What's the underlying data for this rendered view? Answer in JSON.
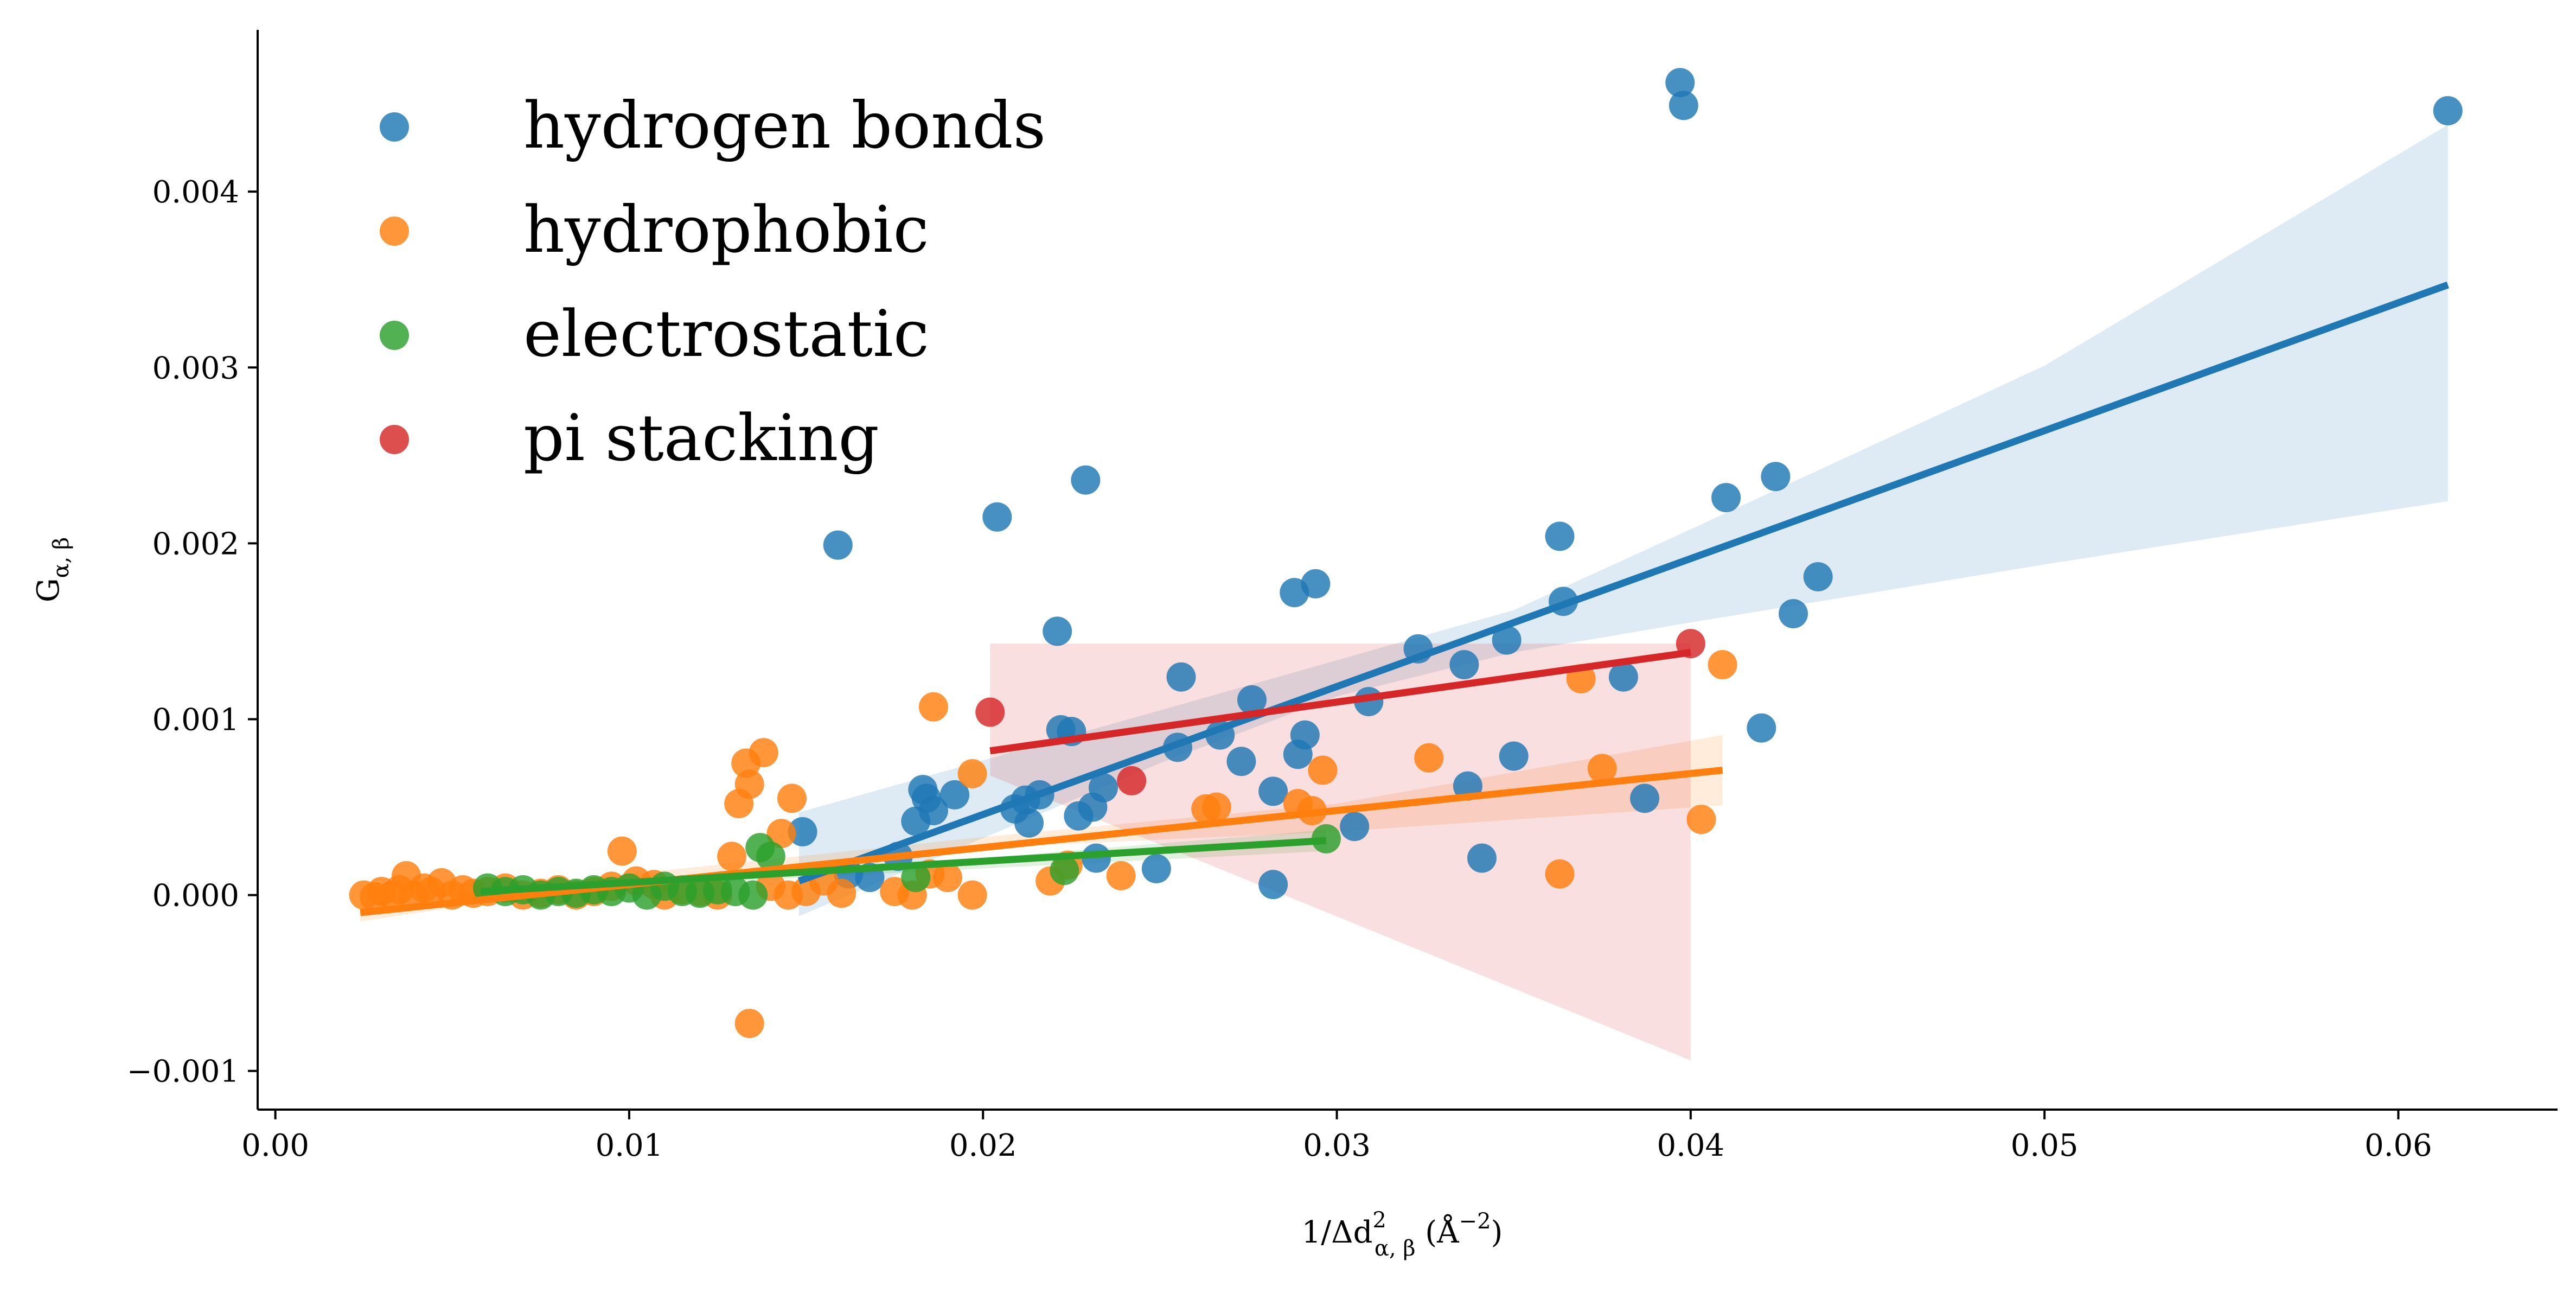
{
  "chart_data": {
    "type": "scatter",
    "title": "",
    "xlabel": "1/Δd²α,β (Å⁻²)",
    "ylabel": "Gα,β",
    "xlabel_parts": {
      "base": "1/Δd",
      "sup": "2",
      "sub": "α, β",
      "unit": " (Å",
      "unit_sup": "−2",
      "unit_close": ")"
    },
    "ylabel_parts": {
      "base": "G",
      "sub": "α, β"
    },
    "xlim": [
      -0.0005,
      0.0645
    ],
    "ylim": [
      -0.00122,
      0.00492
    ],
    "x_ticks": [
      0.0,
      0.01,
      0.02,
      0.03,
      0.04,
      0.05,
      0.06
    ],
    "x_tick_labels": [
      "0.00",
      "0.01",
      "0.02",
      "0.03",
      "0.04",
      "0.05",
      "0.06"
    ],
    "y_ticks": [
      -0.001,
      0.0,
      0.001,
      0.002,
      0.003,
      0.004
    ],
    "y_tick_labels": [
      "−0.001",
      "0.000",
      "0.001",
      "0.002",
      "0.003",
      "0.004"
    ],
    "grid": false,
    "legend_position": "top-left",
    "series": [
      {
        "name": "hydrogen bonds",
        "color": "#1f77b4",
        "points": [
          [
            0.0397,
            0.00462
          ],
          [
            0.0398,
            0.00449
          ],
          [
            0.0614,
            0.00446
          ],
          [
            0.0229,
            0.00236
          ],
          [
            0.0424,
            0.00238
          ],
          [
            0.041,
            0.00226
          ],
          [
            0.0204,
            0.00215
          ],
          [
            0.0363,
            0.00204
          ],
          [
            0.0159,
            0.00199
          ],
          [
            0.0294,
            0.00177
          ],
          [
            0.0288,
            0.00172
          ],
          [
            0.0364,
            0.00167
          ],
          [
            0.0429,
            0.0016
          ],
          [
            0.0436,
            0.00181
          ],
          [
            0.0221,
            0.0015
          ],
          [
            0.0348,
            0.00145
          ],
          [
            0.0323,
            0.0014
          ],
          [
            0.0336,
            0.00131
          ],
          [
            0.0256,
            0.00124
          ],
          [
            0.0381,
            0.00124
          ],
          [
            0.0276,
            0.00111
          ],
          [
            0.0309,
            0.0011
          ],
          [
            0.042,
            0.00095
          ],
          [
            0.0222,
            0.00094
          ],
          [
            0.0225,
            0.00093
          ],
          [
            0.0291,
            0.00091
          ],
          [
            0.0267,
            0.00091
          ],
          [
            0.0289,
            0.0008
          ],
          [
            0.0255,
            0.00084
          ],
          [
            0.0273,
            0.00076
          ],
          [
            0.035,
            0.00079
          ],
          [
            0.0234,
            0.00061
          ],
          [
            0.0337,
            0.00062
          ],
          [
            0.0282,
            0.00059
          ],
          [
            0.0183,
            0.0006
          ],
          [
            0.0184,
            0.00055
          ],
          [
            0.0192,
            0.00057
          ],
          [
            0.0216,
            0.00057
          ],
          [
            0.0212,
            0.00054
          ],
          [
            0.0387,
            0.00055
          ],
          [
            0.0231,
            0.0005
          ],
          [
            0.0186,
            0.00048
          ],
          [
            0.0209,
            0.00049
          ],
          [
            0.0227,
            0.00045
          ],
          [
            0.0181,
            0.00042
          ],
          [
            0.0213,
            0.00041
          ],
          [
            0.0305,
            0.00039
          ],
          [
            0.0149,
            0.00036
          ],
          [
            0.0232,
            0.00021
          ],
          [
            0.0341,
            0.00021
          ],
          [
            0.0249,
            0.00015
          ],
          [
            0.0282,
            6e-05
          ],
          [
            0.0176,
            0.00022
          ],
          [
            0.0162,
            0.00012
          ],
          [
            0.0168,
            0.0001
          ]
        ],
        "fit": {
          "x": [
            0.0148,
            0.0614
          ],
          "y": [
            8e-05,
            0.00347
          ]
        },
        "ci_upper": [
          [
            0.0148,
            0.00047
          ],
          [
            0.025,
            0.00105
          ],
          [
            0.035,
            0.00162
          ],
          [
            0.04,
            0.00208
          ],
          [
            0.05,
            0.00301
          ],
          [
            0.0614,
            0.00438
          ]
        ],
        "ci_lower": [
          [
            0.0148,
            -0.00012
          ],
          [
            0.025,
            0.00075
          ],
          [
            0.03,
            0.00113
          ],
          [
            0.035,
            0.00138
          ],
          [
            0.04,
            0.00155
          ],
          [
            0.05,
            0.00188
          ],
          [
            0.0614,
            0.00224
          ]
        ]
      },
      {
        "name": "hydrophobic",
        "color": "#ff7f0e",
        "points": [
          [
            0.0025,
            0.0
          ],
          [
            0.0028,
            -1e-05
          ],
          [
            0.003,
            2e-05
          ],
          [
            0.0033,
            0.0
          ],
          [
            0.0035,
            3e-05
          ],
          [
            0.0037,
            0.00011
          ],
          [
            0.0039,
            0.0
          ],
          [
            0.0042,
            4e-05
          ],
          [
            0.0044,
            2e-05
          ],
          [
            0.0047,
            7e-05
          ],
          [
            0.005,
            0.0
          ],
          [
            0.0053,
            3e-05
          ],
          [
            0.0056,
            1e-05
          ],
          [
            0.006,
            2e-05
          ],
          [
            0.0065,
            4e-05
          ],
          [
            0.007,
            0.0
          ],
          [
            0.0075,
            1e-05
          ],
          [
            0.008,
            3e-05
          ],
          [
            0.0085,
            0.0
          ],
          [
            0.009,
            2e-05
          ],
          [
            0.0095,
            5e-05
          ],
          [
            0.0098,
            0.00025
          ],
          [
            0.0102,
            8e-05
          ],
          [
            0.0107,
            6e-05
          ],
          [
            0.011,
            0.0
          ],
          [
            0.0115,
            3e-05
          ],
          [
            0.012,
            2e-05
          ],
          [
            0.0125,
            0.0
          ],
          [
            0.0129,
            0.00022
          ],
          [
            0.0131,
            0.00052
          ],
          [
            0.0133,
            0.00075
          ],
          [
            0.0134,
            0.00063
          ],
          [
            0.0138,
            0.00081
          ],
          [
            0.0143,
            0.00035
          ],
          [
            0.0146,
            0.00055
          ],
          [
            0.0134,
            -0.00073
          ],
          [
            0.014,
            5e-05
          ],
          [
            0.0145,
            0.0
          ],
          [
            0.015,
            2e-05
          ],
          [
            0.0155,
            8e-05
          ],
          [
            0.016,
            1e-05
          ],
          [
            0.0175,
            2e-05
          ],
          [
            0.018,
            0.0
          ],
          [
            0.0185,
            0.00012
          ],
          [
            0.0186,
            0.00107
          ],
          [
            0.019,
            0.0001
          ],
          [
            0.0197,
            0.0
          ],
          [
            0.0197,
            0.00069
          ],
          [
            0.0219,
            8e-05
          ],
          [
            0.0224,
            0.00017
          ],
          [
            0.0239,
            0.00011
          ],
          [
            0.0263,
            0.00049
          ],
          [
            0.0266,
            0.0005
          ],
          [
            0.0289,
            0.00052
          ],
          [
            0.0293,
            0.00048
          ],
          [
            0.0296,
            0.00071
          ],
          [
            0.0326,
            0.00078
          ],
          [
            0.0363,
            0.00012
          ],
          [
            0.0369,
            0.00123
          ],
          [
            0.0375,
            0.00072
          ],
          [
            0.0403,
            0.00043
          ],
          [
            0.0409,
            0.00131
          ]
        ],
        "fit": {
          "x": [
            0.0024,
            0.0409
          ],
          "y": [
            -0.0001,
            0.00071
          ]
        },
        "ci_upper": [
          [
            0.0024,
            -5e-05
          ],
          [
            0.01,
            0.00012
          ],
          [
            0.02,
            0.00033
          ],
          [
            0.03,
            0.00052
          ],
          [
            0.0409,
            0.00091
          ]
        ],
        "ci_lower": [
          [
            0.0024,
            -0.00015
          ],
          [
            0.01,
            8e-05
          ],
          [
            0.02,
            0.00027
          ],
          [
            0.03,
            0.00036
          ],
          [
            0.0409,
            0.00051
          ]
        ]
      },
      {
        "name": "electrostatic",
        "color": "#2ca02c",
        "points": [
          [
            0.006,
            4e-05
          ],
          [
            0.0065,
            2e-05
          ],
          [
            0.007,
            3e-05
          ],
          [
            0.0075,
            0.0
          ],
          [
            0.008,
            2e-05
          ],
          [
            0.0085,
            1e-05
          ],
          [
            0.009,
            3e-05
          ],
          [
            0.0095,
            2e-05
          ],
          [
            0.01,
            4e-05
          ],
          [
            0.0105,
            0.0
          ],
          [
            0.011,
            5e-05
          ],
          [
            0.0115,
            2e-05
          ],
          [
            0.012,
            1e-05
          ],
          [
            0.0125,
            3e-05
          ],
          [
            0.013,
            2e-05
          ],
          [
            0.0135,
            0.0
          ],
          [
            0.0137,
            0.00027
          ],
          [
            0.014,
            0.00022
          ],
          [
            0.0181,
            0.0001
          ],
          [
            0.0223,
            0.00014
          ],
          [
            0.0297,
            0.00032
          ]
        ],
        "fit": {
          "x": [
            0.0058,
            0.0297
          ],
          "y": [
            2e-05,
            0.00031
          ]
        },
        "ci_upper": [
          [
            0.0058,
            4e-05
          ],
          [
            0.015,
            0.00013
          ],
          [
            0.0297,
            0.00037
          ]
        ],
        "ci_lower": [
          [
            0.0058,
            0.0
          ],
          [
            0.015,
            0.0001
          ],
          [
            0.0297,
            0.00025
          ]
        ]
      },
      {
        "name": "pi stacking",
        "color": "#d62728",
        "points": [
          [
            0.0202,
            0.00104
          ],
          [
            0.0242,
            0.00065
          ],
          [
            0.04,
            0.00143
          ]
        ],
        "fit": {
          "x": [
            0.0202,
            0.04
          ],
          "y": [
            0.00082,
            0.00138
          ]
        },
        "ci_upper": [
          [
            0.0202,
            0.00143
          ],
          [
            0.04,
            0.00143
          ]
        ],
        "ci_lower": [
          [
            0.0202,
            0.00068
          ],
          [
            0.04,
            -0.00094
          ]
        ]
      }
    ]
  }
}
